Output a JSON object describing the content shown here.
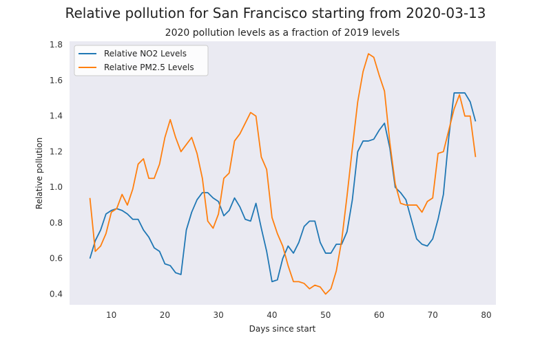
{
  "chart_data": {
    "type": "line",
    "title": "Relative pollution for San Francisco starting from 2020-03-13",
    "subtitle": "2020 pollution levels as a fraction of 2019 levels",
    "xlabel": "Days since start",
    "ylabel": "Relative pollution",
    "xlim": [
      2.2,
      81.8
    ],
    "ylim": [
      0.34,
      1.82
    ],
    "xticks": [
      10,
      20,
      30,
      40,
      50,
      60,
      70,
      80
    ],
    "yticks": [
      0.4,
      0.6,
      0.8,
      1.0,
      1.2,
      1.4,
      1.6,
      1.8
    ],
    "xtick_labels": [
      "10",
      "20",
      "30",
      "40",
      "50",
      "60",
      "70",
      "80"
    ],
    "ytick_labels": [
      "0.4",
      "0.6",
      "0.8",
      "1.0",
      "1.2",
      "1.4",
      "1.6",
      "1.8"
    ],
    "grid": false,
    "legend_position": "upper-left",
    "background": "#eaeaf2",
    "series": [
      {
        "name": "Relative NO2 Levels",
        "color": "#1f77b4",
        "x": [
          6,
          7,
          8,
          9,
          10,
          11,
          12,
          13,
          14,
          15,
          16,
          17,
          18,
          19,
          20,
          21,
          22,
          23,
          24,
          25,
          26,
          27,
          28,
          29,
          30,
          31,
          32,
          33,
          34,
          35,
          36,
          37,
          38,
          39,
          40,
          41,
          42,
          43,
          44,
          45,
          46,
          47,
          48,
          49,
          50,
          51,
          52,
          53,
          54,
          55,
          56,
          57,
          58,
          59,
          60,
          61,
          62,
          63,
          64,
          65,
          66,
          67,
          68,
          69,
          70,
          71,
          72,
          73,
          74,
          75,
          76,
          77,
          78
        ],
        "y": [
          0.6,
          0.7,
          0.76,
          0.85,
          0.87,
          0.88,
          0.87,
          0.85,
          0.82,
          0.82,
          0.76,
          0.72,
          0.66,
          0.64,
          0.57,
          0.56,
          0.52,
          0.51,
          0.76,
          0.86,
          0.93,
          0.97,
          0.97,
          0.94,
          0.92,
          0.84,
          0.87,
          0.94,
          0.89,
          0.82,
          0.81,
          0.91,
          0.77,
          0.64,
          0.47,
          0.48,
          0.6,
          0.67,
          0.63,
          0.69,
          0.78,
          0.81,
          0.81,
          0.69,
          0.63,
          0.63,
          0.68,
          0.68,
          0.75,
          0.93,
          1.2,
          1.26,
          1.26,
          1.27,
          1.32,
          1.36,
          1.22,
          1.0,
          0.97,
          0.93,
          0.82,
          0.71,
          0.68,
          0.67,
          0.71,
          0.82,
          0.96,
          1.28,
          1.53,
          1.53,
          1.53,
          1.48,
          1.37
        ]
      },
      {
        "name": "Relative PM2.5 Levels",
        "color": "#ff7f0e",
        "x": [
          6,
          7,
          8,
          9,
          10,
          11,
          12,
          13,
          14,
          15,
          16,
          17,
          18,
          19,
          20,
          21,
          22,
          23,
          24,
          25,
          26,
          27,
          28,
          29,
          30,
          31,
          32,
          33,
          34,
          35,
          36,
          37,
          38,
          39,
          40,
          41,
          42,
          43,
          44,
          45,
          46,
          47,
          48,
          49,
          50,
          51,
          52,
          53,
          54,
          55,
          56,
          57,
          58,
          59,
          60,
          61,
          62,
          63,
          64,
          65,
          66,
          67,
          68,
          69,
          70,
          71,
          72,
          73,
          74,
          75,
          76,
          77,
          78
        ],
        "y": [
          0.94,
          0.64,
          0.67,
          0.74,
          0.86,
          0.88,
          0.96,
          0.9,
          0.99,
          1.13,
          1.16,
          1.05,
          1.05,
          1.13,
          1.28,
          1.38,
          1.28,
          1.2,
          1.24,
          1.28,
          1.19,
          1.05,
          0.81,
          0.77,
          0.85,
          1.05,
          1.08,
          1.26,
          1.3,
          1.36,
          1.42,
          1.4,
          1.17,
          1.1,
          0.83,
          0.74,
          0.67,
          0.56,
          0.47,
          0.47,
          0.46,
          0.43,
          0.45,
          0.44,
          0.4,
          0.43,
          0.53,
          0.7,
          0.95,
          1.22,
          1.48,
          1.65,
          1.75,
          1.73,
          1.63,
          1.54,
          1.25,
          1.02,
          0.91,
          0.9,
          0.9,
          0.9,
          0.86,
          0.92,
          0.94,
          1.19,
          1.2,
          1.32,
          1.44,
          1.52,
          1.4,
          1.4,
          1.17
        ]
      }
    ]
  }
}
